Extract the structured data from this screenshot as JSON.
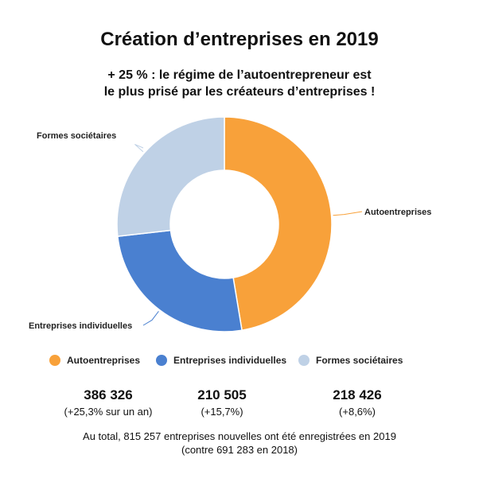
{
  "title": "Création d’entreprises en 2019",
  "subtitle_line1": "+ 25 % : le régime de l’autoentrepreneur est",
  "subtitle_line2": "le plus prisé par les créateurs d’entreprises !",
  "chart_data": {
    "type": "pie",
    "title": "Création d’entreprises en 2019",
    "labels": [
      "Autoentreprises",
      "Entreprises individuelles",
      "Formes sociétaires"
    ],
    "values": [
      386326,
      210505,
      218426
    ],
    "changes": [
      "(+25,3% sur un an)",
      "(+15,7%)",
      "(+8,6%)"
    ],
    "value_labels": [
      "386 326",
      "210 505",
      "218 426"
    ],
    "colors": [
      "#f8a13a",
      "#4a80d0",
      "#bfd1e6"
    ],
    "donut": true,
    "legend_position": "bottom"
  },
  "footer_line1": "Au total, 815 257 entreprises nouvelles ont été enregistrées en 2019",
  "footer_line2": "(contre 691 283 en 2018)"
}
